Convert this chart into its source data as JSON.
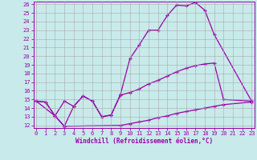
{
  "bg_color": "#c8eaea",
  "line_color": "#9900aa",
  "grid_color": "#aaaaaa",
  "xlabel": "Windchill (Refroidissement éolien,°C)",
  "xlim": [
    0,
    23
  ],
  "ylim": [
    12,
    26
  ],
  "xticks": [
    0,
    1,
    2,
    3,
    4,
    5,
    6,
    7,
    8,
    9,
    10,
    11,
    12,
    13,
    14,
    15,
    16,
    17,
    18,
    19,
    20,
    21,
    22,
    23
  ],
  "yticks": [
    12,
    13,
    14,
    15,
    16,
    17,
    18,
    19,
    20,
    21,
    22,
    23,
    24,
    25,
    26
  ],
  "line1_x": [
    0,
    1,
    2,
    3,
    4,
    5,
    6,
    7,
    8,
    9,
    10,
    11,
    12,
    13,
    14,
    15,
    16,
    17,
    18,
    19,
    23
  ],
  "line1_y": [
    14.8,
    14.7,
    13.1,
    11.9,
    14.2,
    15.4,
    14.8,
    13.0,
    13.2,
    15.6,
    19.7,
    21.3,
    23.0,
    23.0,
    24.7,
    25.9,
    25.8,
    26.2,
    25.3,
    22.5,
    14.8
  ],
  "line2_x": [
    0,
    1,
    2,
    3,
    4,
    5,
    6,
    7,
    8,
    9,
    10,
    11,
    12,
    13,
    14,
    15,
    16,
    17,
    18,
    19,
    20,
    23
  ],
  "line2_y": [
    14.8,
    14.7,
    13.1,
    14.8,
    14.2,
    15.4,
    14.8,
    13.0,
    13.2,
    15.5,
    15.8,
    16.2,
    16.8,
    17.2,
    17.7,
    18.2,
    18.6,
    18.9,
    19.1,
    19.2,
    15.0,
    14.8
  ],
  "line3_x": [
    0,
    2,
    3,
    9,
    10,
    11,
    12,
    13,
    14,
    15,
    16,
    17,
    18,
    19,
    20,
    23
  ],
  "line3_y": [
    14.8,
    13.1,
    11.9,
    12.0,
    12.2,
    12.4,
    12.6,
    12.9,
    13.1,
    13.4,
    13.6,
    13.8,
    14.0,
    14.2,
    14.4,
    14.7
  ],
  "tick_fontsize": 5,
  "xlabel_fontsize": 5.5,
  "lw": 0.9,
  "ms": 3.5
}
